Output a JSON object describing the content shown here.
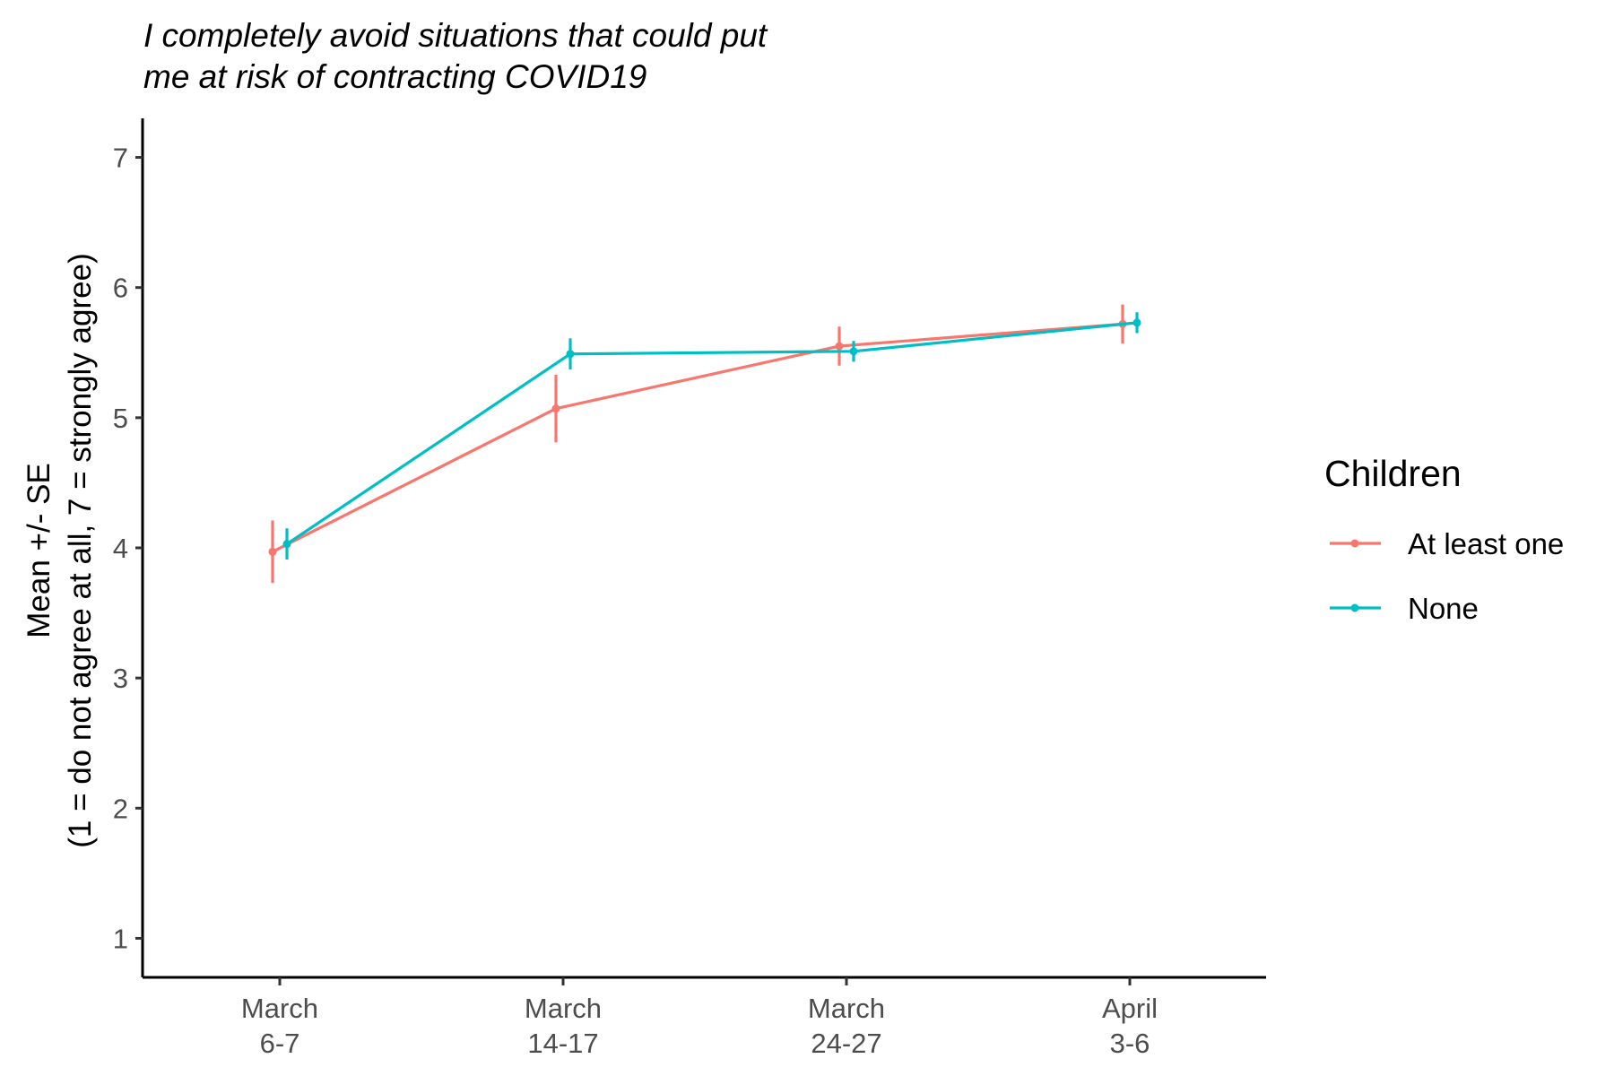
{
  "chart_data": {
    "type": "line",
    "title_lines": [
      "I completely avoid situations that could put",
      "me at risk of contracting COVID19"
    ],
    "xlabel": "",
    "ylabel_lines": [
      "Mean +/- SE",
      "(1 = do not agree at all, 7 = strongly agree)"
    ],
    "ylim": [
      0.7,
      7.3
    ],
    "yticks": [
      1,
      2,
      3,
      4,
      5,
      6,
      7
    ],
    "categories": [
      [
        "March",
        "6-7"
      ],
      [
        "March",
        "14-17"
      ],
      [
        "March",
        "24-27"
      ],
      [
        "April",
        "3-6"
      ]
    ],
    "legend": {
      "title": "Children",
      "position": "right"
    },
    "grid": false,
    "error_bars": "Mean +/- SE",
    "series": [
      {
        "name": "At least one",
        "color": "#F8766D",
        "values": [
          3.97,
          5.07,
          5.55,
          5.72
        ],
        "se": [
          0.24,
          0.26,
          0.15,
          0.15
        ]
      },
      {
        "name": "None",
        "color": "#00BFC4",
        "values": [
          4.03,
          5.49,
          5.51,
          5.73
        ],
        "se": [
          0.12,
          0.12,
          0.08,
          0.08
        ]
      }
    ]
  }
}
